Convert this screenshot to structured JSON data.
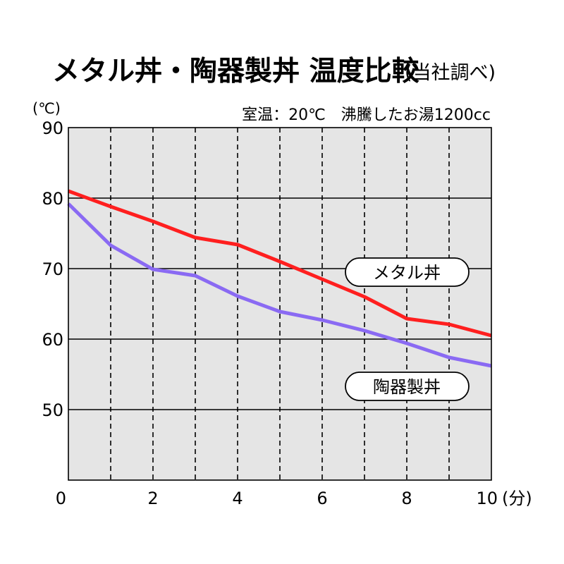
{
  "chart_data": {
    "type": "line",
    "title": "メタル丼・陶器製丼 温度比較",
    "subtitle": "(当社調べ)",
    "conditions": "室温：20℃　沸騰したお湯1200cc",
    "y_unit": "(℃)",
    "x_unit": "(分)",
    "xlim": [
      0,
      10
    ],
    "ylim": [
      40,
      90
    ],
    "x_ticks": [
      "0",
      "2",
      "4",
      "6",
      "8",
      "10"
    ],
    "y_ticks": [
      "50",
      "60",
      "70",
      "80",
      "90"
    ],
    "x_gridlines": "dashed, every 1",
    "y_gridlines": "solid, every 10",
    "plot_background": "#e5e5e5",
    "x": [
      0,
      1,
      2,
      3,
      4,
      5,
      6,
      7,
      8,
      9,
      10
    ],
    "series": [
      {
        "name": "メタル丼",
        "color": "#ff1f1f",
        "values": [
          81.0,
          78.8,
          76.7,
          74.4,
          73.4,
          71.0,
          68.5,
          66.0,
          62.9,
          62.1,
          60.5
        ]
      },
      {
        "name": "陶器製丼",
        "color": "#8a6af3",
        "values": [
          79.2,
          73.3,
          69.9,
          69.0,
          66.1,
          63.9,
          62.7,
          61.2,
          59.4,
          57.4,
          56.2
        ]
      }
    ]
  }
}
